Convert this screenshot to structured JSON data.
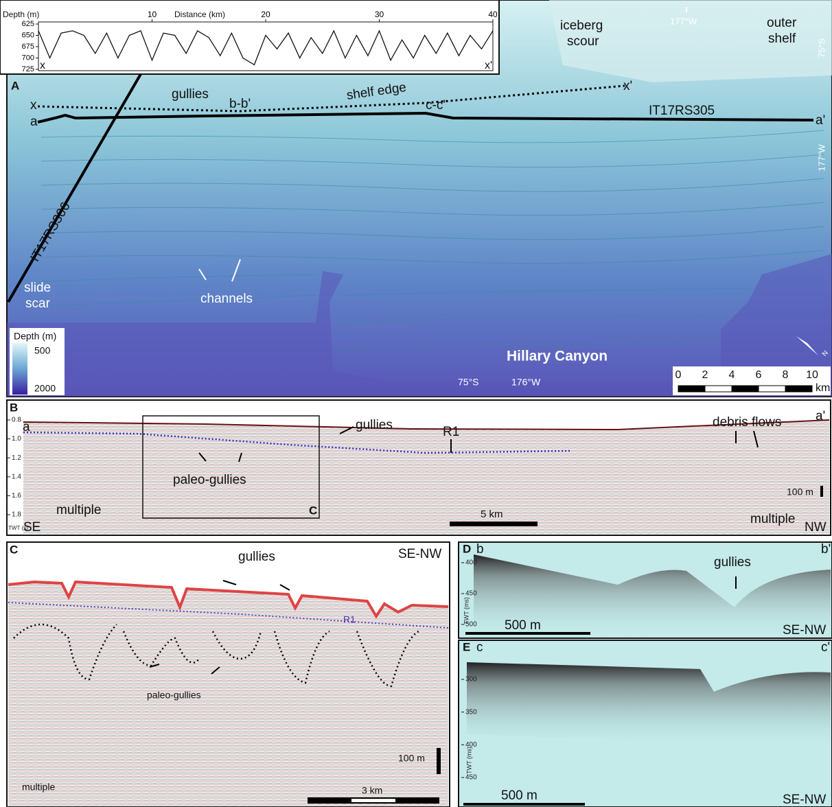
{
  "panel_a": {
    "label": "A",
    "profile": {
      "y_label": "Depth (m)",
      "x_label": "Distance (km)",
      "yticks": [
        625,
        650,
        675,
        700,
        725
      ],
      "xticks": [
        10,
        20,
        30,
        40
      ],
      "xlim": [
        0,
        40
      ],
      "ylim": [
        625,
        725
      ],
      "x": [
        0,
        1,
        2,
        3,
        4,
        5,
        6,
        7,
        8,
        9,
        10,
        11,
        12,
        13,
        14,
        15,
        16,
        17,
        18,
        19,
        20,
        21,
        22,
        23,
        24,
        25,
        26,
        27,
        28,
        29,
        30,
        31,
        32,
        33,
        34,
        35,
        36,
        37,
        38,
        39,
        40
      ],
      "depth": [
        640,
        700,
        645,
        640,
        650,
        690,
        645,
        700,
        650,
        640,
        705,
        645,
        650,
        690,
        640,
        655,
        695,
        645,
        700,
        715,
        650,
        680,
        645,
        700,
        655,
        690,
        640,
        700,
        650,
        695,
        640,
        705,
        660,
        700,
        650,
        690,
        645,
        695,
        650,
        680,
        640
      ],
      "start_label": "x",
      "end_label": "x'"
    },
    "annotations": [
      "gullies",
      "shelf edge",
      "x",
      "x'",
      "a",
      "a'",
      "b-b'",
      "c-c'",
      "IT17RS305",
      "IT17RS306",
      "slide",
      "scar",
      "channels",
      "iceberg",
      "scour",
      "outer",
      "shelf",
      "Hillary Canyon"
    ],
    "coordinates": [
      "177°W",
      "75°S",
      "177°W",
      "75°S",
      "176°W"
    ],
    "depth_legend": {
      "title": "Depth (m)",
      "min": 500,
      "max": 2000
    },
    "scale_bar": {
      "ticks": [
        0,
        2,
        4,
        6,
        8,
        10
      ],
      "unit": "km"
    },
    "north": "N"
  },
  "panel_b": {
    "label": "B",
    "annotations": [
      "a",
      "a'",
      "gullies",
      "R1",
      "debris flows",
      "paleo-gullies",
      "multiple",
      "multiple",
      "C",
      "SE",
      "NW"
    ],
    "scale_horizontal": "5 km",
    "scale_vertical": "100 m",
    "axis_label": "TWT (s)",
    "yticks": [
      0.8,
      {
        "value": 1,
        "label": "1.0"
      },
      1.2,
      1.4,
      1.6,
      1.8
    ]
  },
  "panel_c": {
    "label": "C",
    "direction": "SE-NW",
    "annotations": [
      "gullies",
      "R1",
      "paleo-gullies",
      "multiple"
    ],
    "scale_vertical": "100 m",
    "scale_horizontal": "3 km"
  },
  "panel_d": {
    "label": "D",
    "start": "b",
    "end": "b'",
    "annotation": "gullies",
    "scale_horizontal": "500 m",
    "direction": "SE-NW",
    "axis_label": "TWT (ms)",
    "yticks": [
      400,
      450,
      500
    ]
  },
  "panel_e": {
    "label": "E",
    "start": "c",
    "end": "c'",
    "scale_horizontal": "500 m",
    "direction": "SE-NW",
    "axis_label": "TWT (ms)",
    "yticks": [
      300,
      350,
      400,
      450
    ]
  }
}
